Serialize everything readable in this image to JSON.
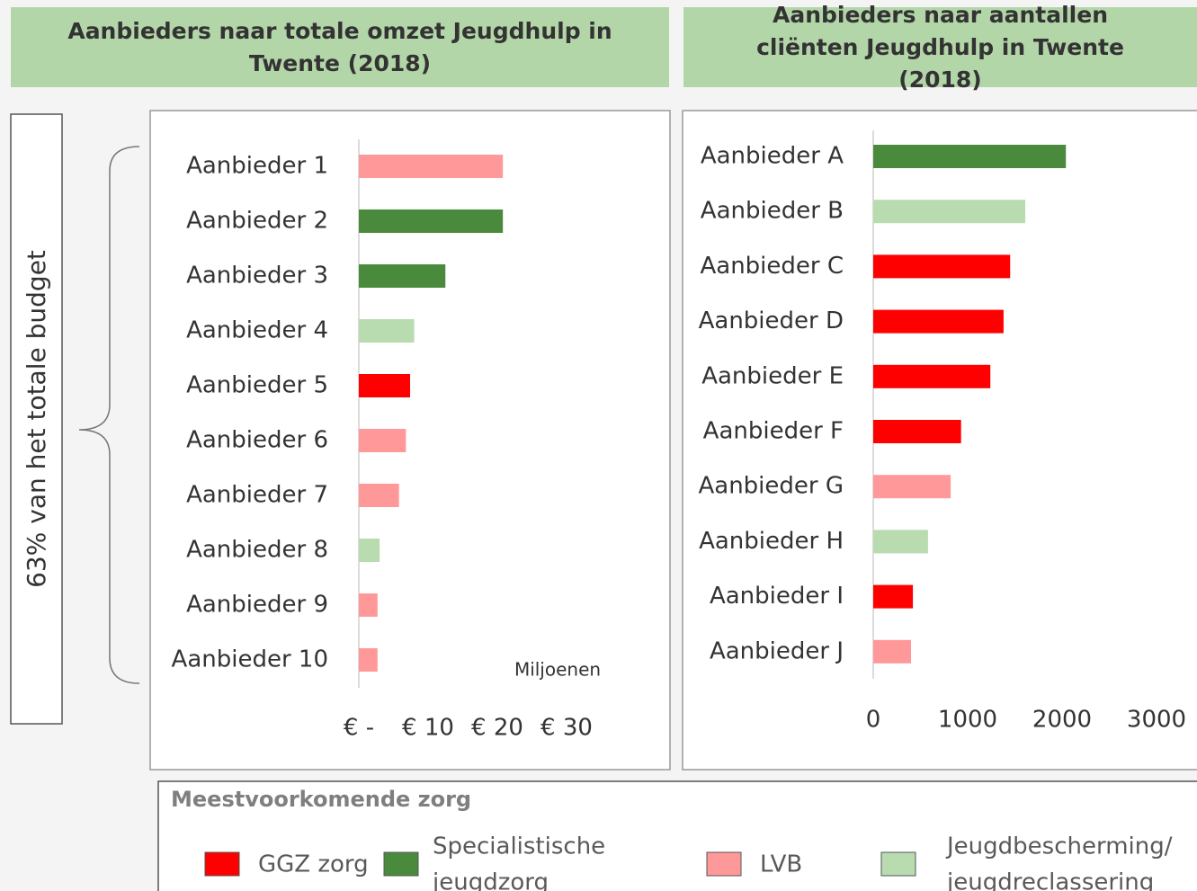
{
  "side_label": "63% van het totale budget",
  "chart_data": [
    {
      "type": "bar",
      "orientation": "horizontal",
      "title": "Aanbieders naar totale omzet Jeugdhulp in Twente (2018)",
      "axis_note": "Miljoenen",
      "categories": [
        "Aanbieder 1",
        "Aanbieder 2",
        "Aanbieder 3",
        "Aanbieder 4",
        "Aanbieder 5",
        "Aanbieder 6",
        "Aanbieder 7",
        "Aanbieder 8",
        "Aanbieder 9",
        "Aanbieder 10"
      ],
      "values": [
        20.8,
        20.8,
        12.5,
        8.0,
        7.4,
        6.8,
        5.8,
        3.0,
        2.7,
        2.7
      ],
      "colors": [
        "#ff9999",
        "#4a8a3c",
        "#4a8a3c",
        "#b8dcb0",
        "#ff0000",
        "#ff9999",
        "#ff9999",
        "#b8dcb0",
        "#ff9999",
        "#ff9999"
      ],
      "xlim": [
        0,
        30
      ],
      "xticks": [
        {
          "value": 0,
          "label": "€ -"
        },
        {
          "value": 10,
          "label": "€ 10"
        },
        {
          "value": 20,
          "label": "€ 20"
        },
        {
          "value": 30,
          "label": "€ 30"
        }
      ]
    },
    {
      "type": "bar",
      "orientation": "horizontal",
      "title": "Aanbieders naar aantallen cliënten Jeugdhulp in Twente (2018)",
      "categories": [
        "Aanbieder A",
        "Aanbieder B",
        "Aanbieder C",
        "Aanbieder D",
        "Aanbieder E",
        "Aanbieder F",
        "Aanbieder G",
        "Aanbieder H",
        "Aanbieder I",
        "Aanbieder J"
      ],
      "values": [
        2040,
        1610,
        1450,
        1380,
        1240,
        930,
        820,
        580,
        420,
        400
      ],
      "colors": [
        "#4a8a3c",
        "#b8dcb0",
        "#ff0000",
        "#ff0000",
        "#ff0000",
        "#ff0000",
        "#ff9999",
        "#b8dcb0",
        "#ff0000",
        "#ff9999"
      ],
      "xlim": [
        0,
        3000
      ],
      "xticks": [
        0,
        1000,
        2000,
        3000
      ]
    }
  ],
  "legend": {
    "title": "Meestvoorkomende zorg",
    "items": [
      {
        "color": "#ff0000",
        "lines": [
          "GGZ zorg"
        ]
      },
      {
        "color": "#4a8a3c",
        "lines": [
          "Specialistische",
          "jeugdzorg"
        ]
      },
      {
        "color": "#ff9999",
        "lines": [
          "LVB"
        ]
      },
      {
        "color": "#b8dcb0",
        "lines": [
          "Jeugdbescherming/",
          "jeugdreclassering"
        ]
      }
    ]
  }
}
